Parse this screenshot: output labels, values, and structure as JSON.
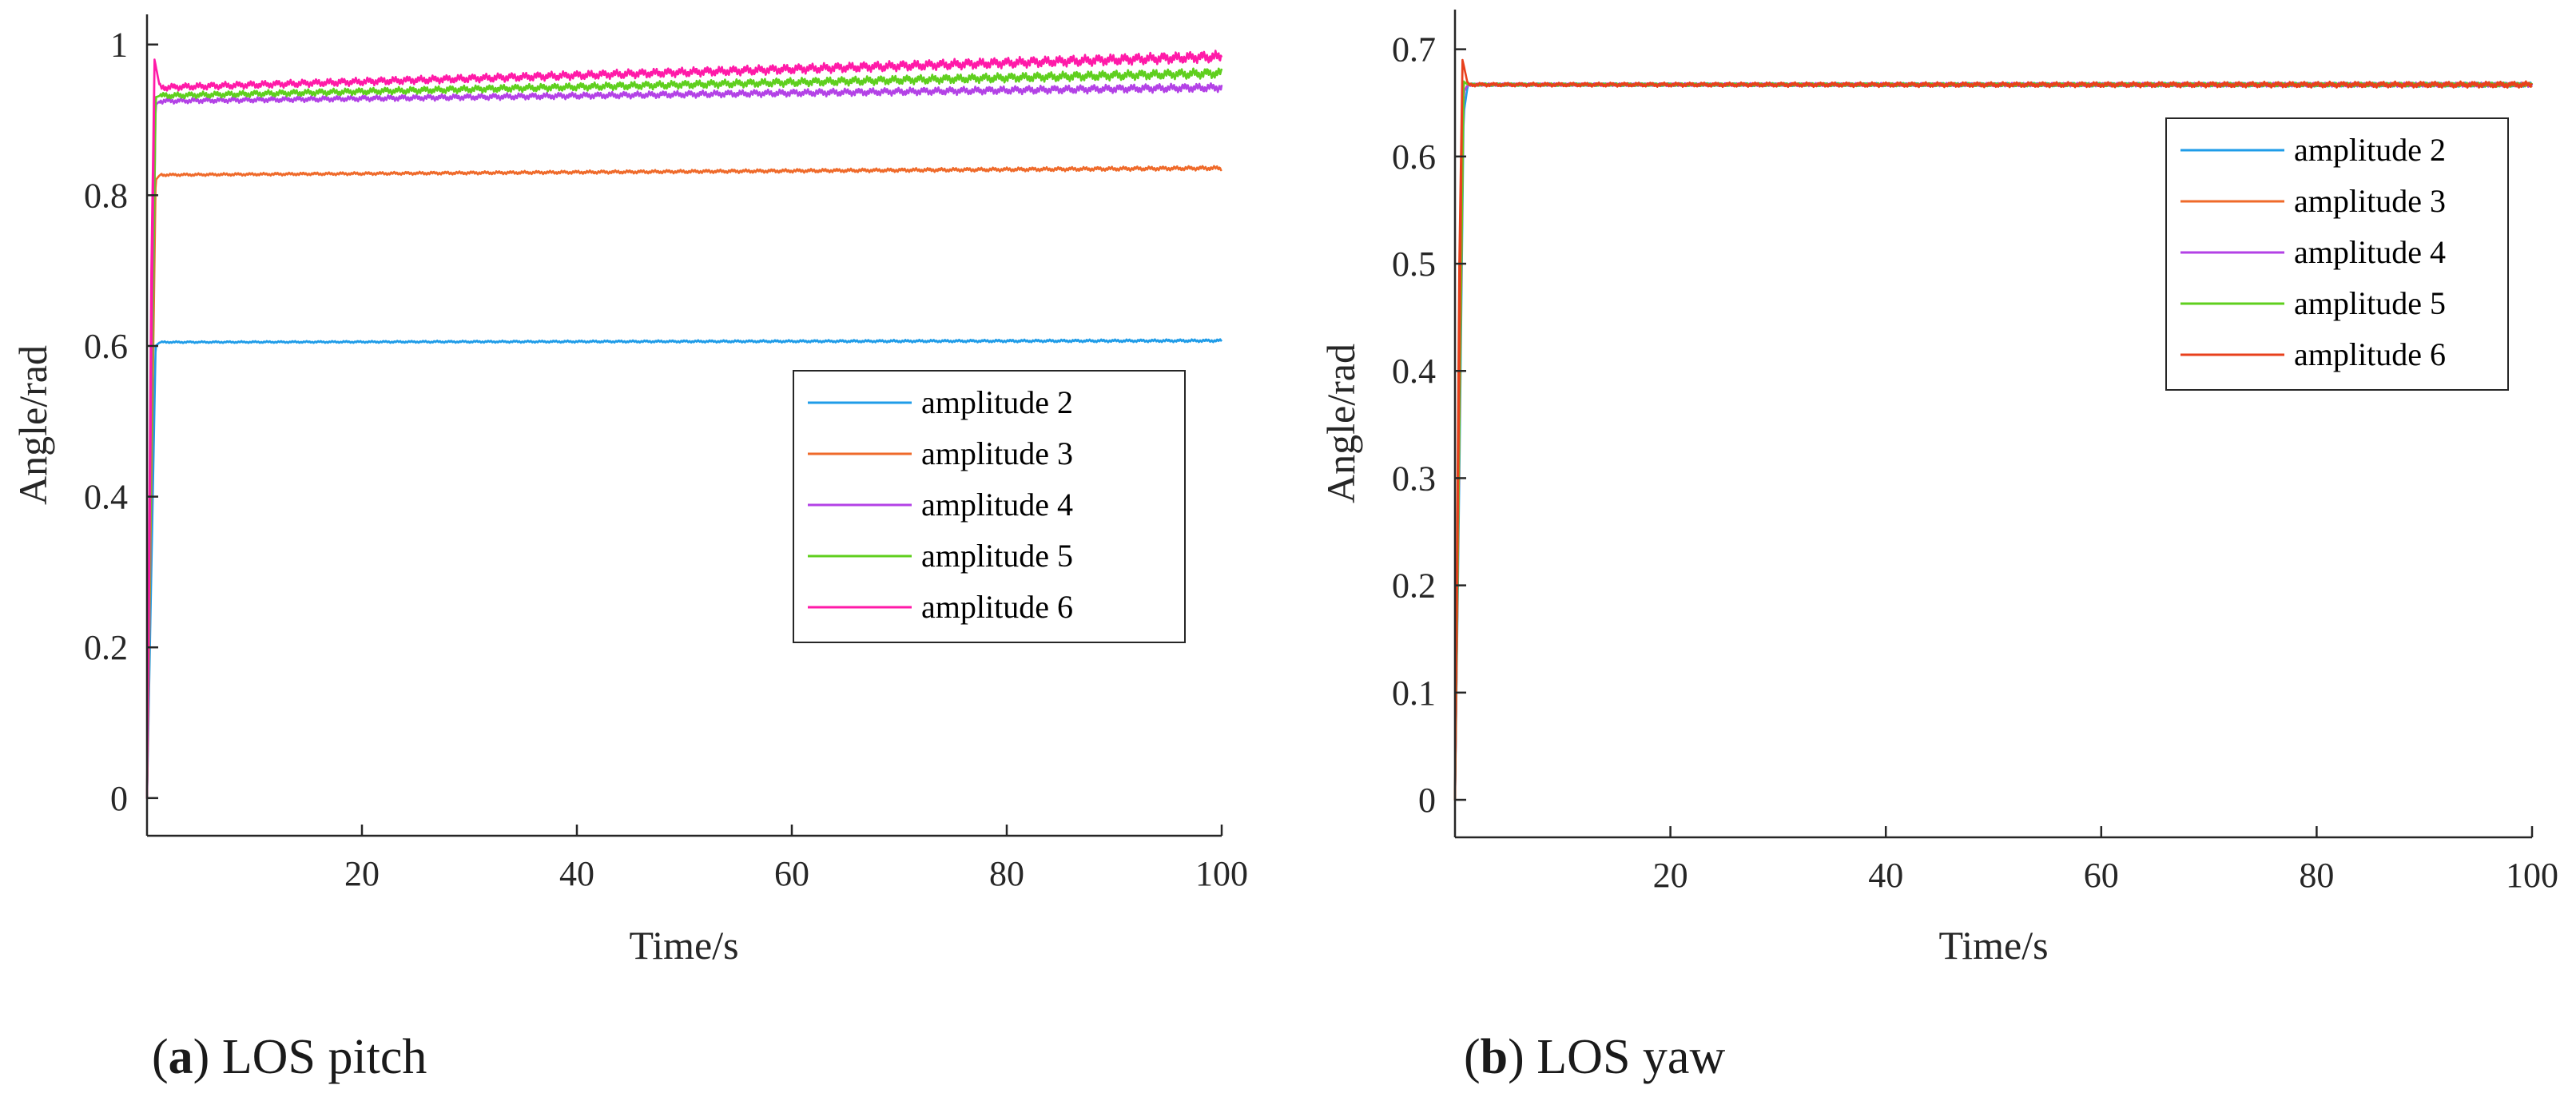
{
  "series_names": [
    "amplitude 2",
    "amplitude 3",
    "amplitude 4",
    "amplitude 5",
    "amplitude 6"
  ],
  "colors": {
    "amplitude 2": "#1f9ce8",
    "amplitude 3": "#ef6a2a",
    "amplitude 4": "#b342e6",
    "amplitude 5": "#5fcf1e",
    "amplitude 6": "#ff1aa8",
    "yaw amplitude 6": "#e8401c",
    "axis": "#262626"
  },
  "chart_data": [
    {
      "type": "line",
      "title": "",
      "xlabel": "Time/s",
      "ylabel": "Angle/rad",
      "xlim": [
        0,
        100
      ],
      "ylim": [
        -0.05,
        1.04
      ],
      "xticks": [
        20,
        40,
        60,
        80,
        100
      ],
      "yticks": [
        0,
        0.2,
        0.4,
        0.6,
        0.8,
        1
      ],
      "ytick_labels": [
        "0",
        "0.2",
        "0.4",
        "0.6",
        "0.8",
        "1"
      ],
      "legend_position": "center-right",
      "caption_label": "a",
      "caption_text": "LOS pitch",
      "series": [
        {
          "name": "amplitude 2",
          "color": "#1f9ce8",
          "x": [
            0,
            0.4,
            0.8,
            1.2,
            100
          ],
          "values": [
            0,
            0.35,
            0.6,
            0.605,
            0.607
          ],
          "noise": 0.002
        },
        {
          "name": "amplitude 3",
          "color": "#ef6a2a",
          "x": [
            0,
            0.4,
            0.8,
            1.2,
            100
          ],
          "values": [
            0,
            0.5,
            0.82,
            0.827,
            0.836
          ],
          "noise": 0.003
        },
        {
          "name": "amplitude 4",
          "color": "#b342e6",
          "x": [
            0,
            0.4,
            0.8,
            1.2,
            100
          ],
          "values": [
            0,
            0.55,
            0.92,
            0.925,
            0.943
          ],
          "noise": 0.006
        },
        {
          "name": "amplitude 5",
          "color": "#5fcf1e",
          "x": [
            0,
            0.4,
            0.8,
            1.2,
            100
          ],
          "values": [
            0,
            0.6,
            0.93,
            0.932,
            0.962
          ],
          "noise": 0.007
        },
        {
          "name": "amplitude 6",
          "color": "#ff1aa8",
          "x": [
            0,
            0.4,
            0.7,
            1.2,
            100
          ],
          "values": [
            0,
            0.7,
            0.98,
            0.943,
            0.984
          ],
          "noise": 0.008
        }
      ]
    },
    {
      "type": "line",
      "title": "",
      "xlabel": "Time/s",
      "ylabel": "Angle/rad",
      "xlim": [
        0,
        100
      ],
      "ylim": [
        -0.035,
        0.737
      ],
      "xticks": [
        20,
        40,
        60,
        80,
        100
      ],
      "yticks": [
        0,
        0.1,
        0.2,
        0.3,
        0.4,
        0.5,
        0.6,
        0.7
      ],
      "ytick_labels": [
        "0",
        "0.1",
        "0.2",
        "0.3",
        "0.4",
        "0.5",
        "0.6",
        "0.7"
      ],
      "legend_position": "top-right",
      "caption_label": "b",
      "caption_text": "LOS yaw",
      "series": [
        {
          "name": "amplitude 2",
          "color": "#1f9ce8",
          "x": [
            0,
            0.4,
            0.8,
            1.2,
            100
          ],
          "values": [
            0,
            0.3,
            0.64,
            0.667,
            0.667
          ],
          "noise": 0.002
        },
        {
          "name": "amplitude 3",
          "color": "#ef6a2a",
          "x": [
            0,
            0.4,
            0.8,
            1.2,
            100
          ],
          "values": [
            0,
            0.35,
            0.66,
            0.667,
            0.667
          ],
          "noise": 0.002
        },
        {
          "name": "amplitude 4",
          "color": "#b342e6",
          "x": [
            0,
            0.4,
            0.8,
            1.2,
            100
          ],
          "values": [
            0,
            0.4,
            0.66,
            0.667,
            0.667
          ],
          "noise": 0.002
        },
        {
          "name": "amplitude 5",
          "color": "#5fcf1e",
          "x": [
            0,
            0.4,
            0.8,
            1.2,
            100
          ],
          "values": [
            0,
            0.45,
            0.67,
            0.667,
            0.667
          ],
          "noise": 0.002
        },
        {
          "name": "amplitude 6",
          "color": "#e8401c",
          "x": [
            0,
            0.4,
            0.7,
            1.2,
            100
          ],
          "values": [
            0,
            0.5,
            0.69,
            0.667,
            0.667
          ],
          "noise": 0.003
        }
      ]
    }
  ]
}
